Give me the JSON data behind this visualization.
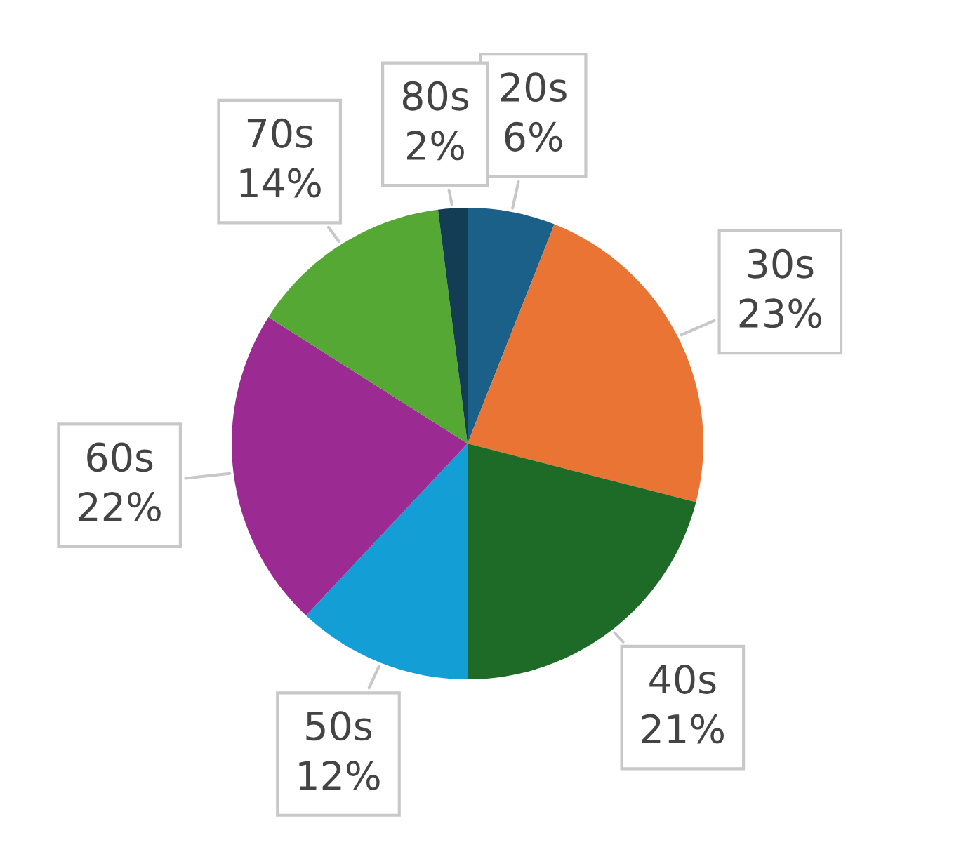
{
  "chart_data": {
    "type": "pie",
    "categories": [
      "20s",
      "30s",
      "40s",
      "50s",
      "60s",
      "70s",
      "80s"
    ],
    "values": [
      6,
      23,
      21,
      12,
      22,
      14,
      2
    ],
    "value_labels": [
      "6%",
      "23%",
      "21%",
      "12%",
      "22%",
      "14%",
      "2%"
    ],
    "colors": [
      "#1a6089",
      "#e97434",
      "#1e6b27",
      "#139fd6",
      "#9b2a92",
      "#55a834",
      "#133c55"
    ]
  }
}
